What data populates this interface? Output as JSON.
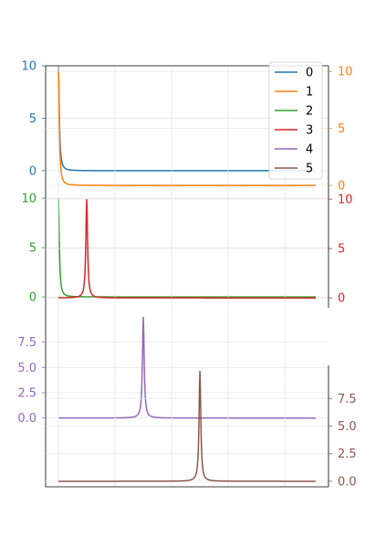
{
  "chart_data": {
    "type": "line",
    "title": "",
    "xlabel": "",
    "ylabel": "",
    "grid": true,
    "legend": {
      "placement": "top-right",
      "entries": [
        "0",
        "1",
        "2",
        "3",
        "4",
        "5"
      ]
    },
    "x": {
      "range": [
        0,
        1
      ]
    },
    "series": [
      {
        "name": "0",
        "color": "#1f77b4",
        "axis_side": "left",
        "ylim": [
          -1.4,
          10.0
        ],
        "yticks": [
          0,
          5,
          10
        ],
        "tick_labels": [
          "0",
          "5",
          "10"
        ],
        "peak_x": 0.0,
        "peak_y": 10.0,
        "baseline_y": 0.0,
        "peak_width": 0.004
      },
      {
        "name": "1",
        "color": "#ff7f0e",
        "axis_side": "right",
        "ylim": [
          0.0,
          10.5
        ],
        "yticks": [
          0,
          5,
          10
        ],
        "tick_labels": [
          "0",
          "5",
          "10"
        ],
        "peak_x": 0.0,
        "peak_y": 10.0,
        "baseline_y": 0.0,
        "peak_width": 0.004
      },
      {
        "name": "2",
        "color": "#2ca02c",
        "axis_side": "left",
        "ylim": [
          -1.1,
          11.3
        ],
        "yticks": [
          0,
          5,
          10
        ],
        "tick_labels": [
          "0",
          "5",
          "10"
        ],
        "peak_x": 0.0,
        "peak_y": 10.0,
        "baseline_y": 0.0,
        "peak_width": 0.004
      },
      {
        "name": "3",
        "color": "#d62728",
        "axis_side": "right",
        "ylim": [
          -1.0,
          11.4
        ],
        "yticks": [
          0,
          5,
          10
        ],
        "tick_labels": [
          "0",
          "5",
          "10"
        ],
        "peak_x": 0.11,
        "peak_y": 10.0,
        "baseline_y": 0.0,
        "peak_width": 0.004
      },
      {
        "name": "4",
        "color": "#9467bd",
        "axis_side": "left",
        "ylim": [
          -6.8,
          10.9
        ],
        "yticks": [
          0.0,
          2.5,
          5.0,
          7.5
        ],
        "tick_labels": [
          "0.0",
          "2.5",
          "5.0",
          "7.5"
        ],
        "peak_x": 0.33,
        "peak_y": 10.0,
        "baseline_y": 0.0,
        "peak_width": 0.004
      },
      {
        "name": "5",
        "color": "#8c564b",
        "axis_side": "right",
        "ylim": [
          -0.5,
          10.5
        ],
        "yticks": [
          0.0,
          2.5,
          5.0,
          7.5
        ],
        "tick_labels": [
          "0.0",
          "2.5",
          "5.0",
          "7.5"
        ],
        "peak_x": 0.55,
        "peak_y": 10.0,
        "baseline_y": 0.0,
        "peak_width": 0.004
      }
    ]
  }
}
